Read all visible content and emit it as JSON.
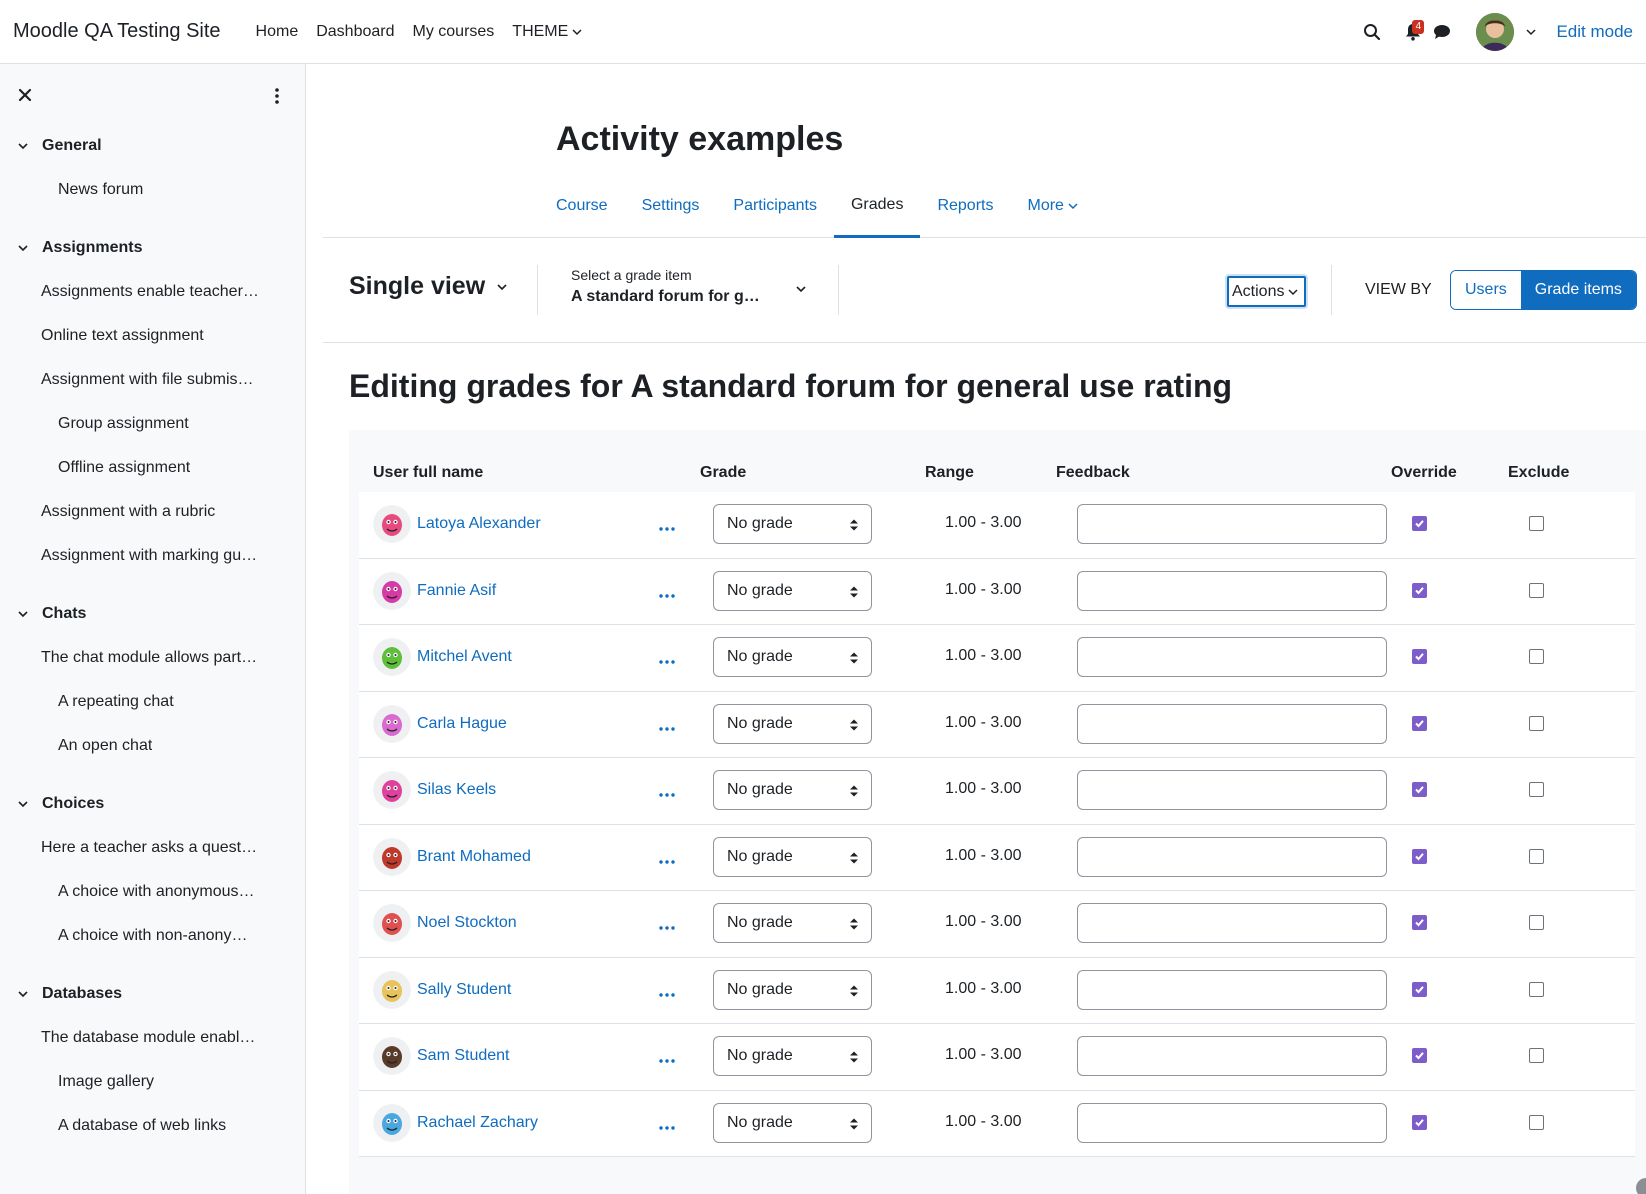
{
  "navbar": {
    "brand": "Moodle QA Testing Site",
    "links": [
      {
        "label": "Home"
      },
      {
        "label": "Dashboard"
      },
      {
        "label": "My courses"
      },
      {
        "label": "THEME"
      }
    ],
    "notification_count": "4",
    "edit_mode_label": "Edit mode"
  },
  "sidebar": {
    "sections": [
      {
        "label": "General",
        "items": [
          {
            "label": "News forum",
            "level": 2
          }
        ]
      },
      {
        "label": "Assignments",
        "items": [
          {
            "label": "Assignments enable teacher…",
            "level": 1
          },
          {
            "label": "Online text assignment",
            "level": 1
          },
          {
            "label": "Assignment with file submis…",
            "level": 1
          },
          {
            "label": "Group assignment",
            "level": 2
          },
          {
            "label": "Offline assignment",
            "level": 2
          },
          {
            "label": "Assignment with a rubric",
            "level": 1
          },
          {
            "label": "Assignment with marking gu…",
            "level": 1
          }
        ]
      },
      {
        "label": "Chats",
        "items": [
          {
            "label": "The chat module allows part…",
            "level": 1
          },
          {
            "label": "A repeating chat",
            "level": 2
          },
          {
            "label": "An open chat",
            "level": 2
          }
        ]
      },
      {
        "label": "Choices",
        "items": [
          {
            "label": "Here a teacher asks a quest…",
            "level": 1
          },
          {
            "label": "A choice with anonymous…",
            "level": 2
          },
          {
            "label": "A choice with non-anony…",
            "level": 2
          }
        ]
      },
      {
        "label": "Databases",
        "items": [
          {
            "label": "The database module enabl…",
            "level": 1
          },
          {
            "label": "Image gallery",
            "level": 2
          },
          {
            "label": "A database of web links",
            "level": 2
          }
        ]
      }
    ]
  },
  "course": {
    "title": "Activity examples",
    "tabs": [
      {
        "label": "Course",
        "active": false
      },
      {
        "label": "Settings",
        "active": false
      },
      {
        "label": "Participants",
        "active": false
      },
      {
        "label": "Grades",
        "active": true
      },
      {
        "label": "Reports",
        "active": false
      },
      {
        "label": "More",
        "active": false
      }
    ]
  },
  "tertiary": {
    "view_label": "Single view",
    "grade_item_label": "Select a grade item",
    "grade_item_value": "A standard forum for g…",
    "actions_label": "Actions",
    "view_by_label": "VIEW BY",
    "users_label": "Users",
    "grade_items_label": "Grade items"
  },
  "heading": "Editing grades for A standard forum for general use rating",
  "table": {
    "headers": {
      "user": "User full name",
      "grade": "Grade",
      "range": "Range",
      "feedback": "Feedback",
      "override": "Override",
      "exclude": "Exclude"
    },
    "rows": [
      {
        "name": "Latoya Alexander",
        "grade": "No grade",
        "range": "1.00 - 3.00",
        "feedback": "",
        "override": true,
        "exclude": false,
        "avatar_color": "#e84a7f"
      },
      {
        "name": "Fannie Asif",
        "grade": "No grade",
        "range": "1.00 - 3.00",
        "feedback": "",
        "override": true,
        "exclude": false,
        "avatar_color": "#d63aa6"
      },
      {
        "name": "Mitchel Avent",
        "grade": "No grade",
        "range": "1.00 - 3.00",
        "feedback": "",
        "override": true,
        "exclude": false,
        "avatar_color": "#5fbf3a"
      },
      {
        "name": "Carla Hague",
        "grade": "No grade",
        "range": "1.00 - 3.00",
        "feedback": "",
        "override": true,
        "exclude": false,
        "avatar_color": "#d96bd0"
      },
      {
        "name": "Silas Keels",
        "grade": "No grade",
        "range": "1.00 - 3.00",
        "feedback": "",
        "override": true,
        "exclude": false,
        "avatar_color": "#e0419c"
      },
      {
        "name": "Brant Mohamed",
        "grade": "No grade",
        "range": "1.00 - 3.00",
        "feedback": "",
        "override": true,
        "exclude": false,
        "avatar_color": "#c0392b"
      },
      {
        "name": "Noel Stockton",
        "grade": "No grade",
        "range": "1.00 - 3.00",
        "feedback": "",
        "override": true,
        "exclude": false,
        "avatar_color": "#e05050"
      },
      {
        "name": "Sally Student",
        "grade": "No grade",
        "range": "1.00 - 3.00",
        "feedback": "",
        "override": true,
        "exclude": false,
        "avatar_color": "#e8c25a"
      },
      {
        "name": "Sam Student",
        "grade": "No grade",
        "range": "1.00 - 3.00",
        "feedback": "",
        "override": true,
        "exclude": false,
        "avatar_color": "#5a3a2a"
      },
      {
        "name": "Rachael Zachary",
        "grade": "No grade",
        "range": "1.00 - 3.00",
        "feedback": "",
        "override": true,
        "exclude": false,
        "avatar_color": "#4aa8e0"
      }
    ]
  },
  "colors": {
    "link": "#0f6cbf",
    "checkbox_checked": "#7c5dc9",
    "badge": "#ca3120"
  }
}
